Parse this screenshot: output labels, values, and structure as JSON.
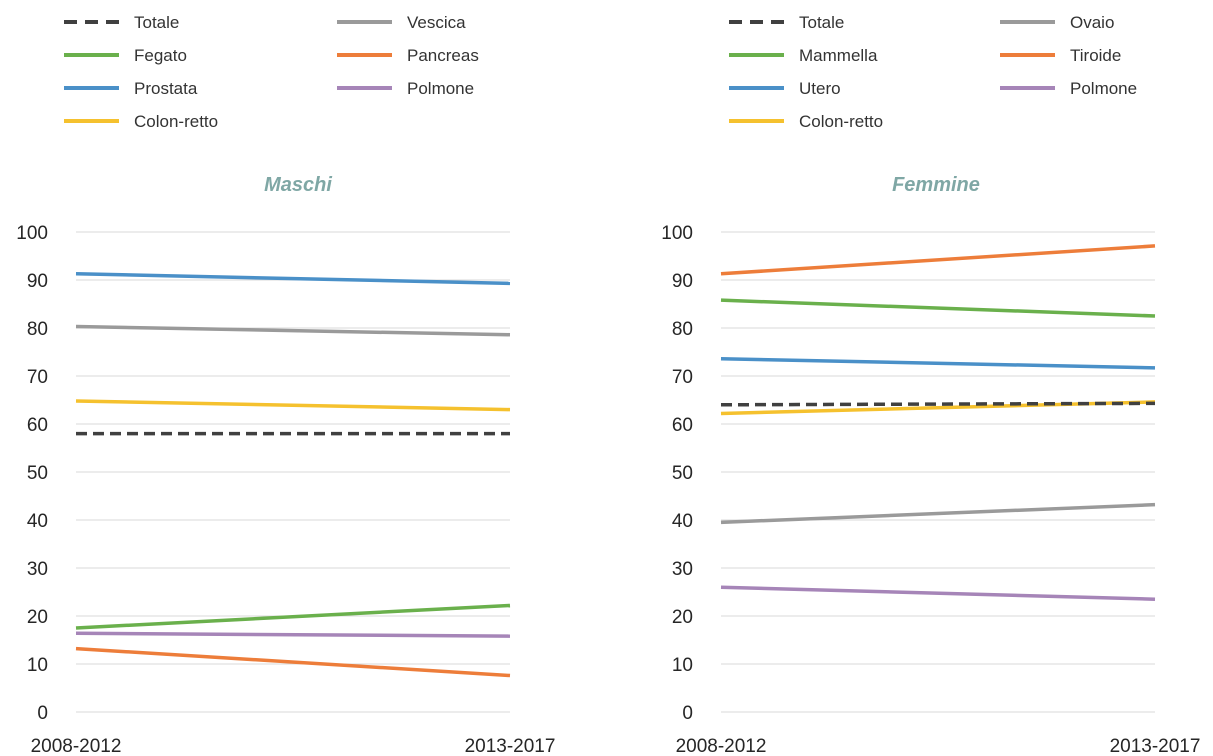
{
  "chart_data": [
    {
      "type": "line",
      "title": "Maschi",
      "x": [
        "2008-2012",
        "2013-2017"
      ],
      "yticks": [
        "0",
        "10",
        "20",
        "30",
        "40",
        "50",
        "60",
        "70",
        "80",
        "90",
        "100"
      ],
      "ylim": [
        0,
        100
      ],
      "grid": true,
      "legend": "top",
      "series": [
        {
          "name": "Totale",
          "values": [
            58,
            58
          ],
          "color": "#404040",
          "dashed": true
        },
        {
          "name": "Fegato",
          "values": [
            17.5,
            22.2
          ],
          "color": "#6ab04c",
          "dashed": false
        },
        {
          "name": "Prostata",
          "values": [
            91.3,
            89.3
          ],
          "color": "#4a90c8",
          "dashed": false
        },
        {
          "name": "Colon-retto",
          "values": [
            64.8,
            63
          ],
          "color": "#f5c12e",
          "dashed": false
        },
        {
          "name": "Vescica",
          "values": [
            80.3,
            78.6
          ],
          "color": "#9a9a9a",
          "dashed": false
        },
        {
          "name": "Pancreas",
          "values": [
            13.2,
            7.6
          ],
          "color": "#ed7d3a",
          "dashed": false
        },
        {
          "name": "Polmone",
          "values": [
            16.4,
            15.8
          ],
          "color": "#a685b8",
          "dashed": false
        }
      ]
    },
    {
      "type": "line",
      "title": "Femmine",
      "x": [
        "2008-2012",
        "2013-2017"
      ],
      "yticks": [
        "0",
        "10",
        "20",
        "30",
        "40",
        "50",
        "60",
        "70",
        "80",
        "90",
        "100"
      ],
      "ylim": [
        0,
        100
      ],
      "grid": true,
      "legend": "top",
      "series": [
        {
          "name": "Totale",
          "values": [
            64,
            64.3
          ],
          "color": "#404040",
          "dashed": true
        },
        {
          "name": "Mammella",
          "values": [
            85.8,
            82.5
          ],
          "color": "#6ab04c",
          "dashed": false
        },
        {
          "name": "Utero",
          "values": [
            73.6,
            71.7
          ],
          "color": "#4a90c8",
          "dashed": false
        },
        {
          "name": "Colon-retto",
          "values": [
            62.2,
            64.6
          ],
          "color": "#f5c12e",
          "dashed": false
        },
        {
          "name": "Ovaio",
          "values": [
            39.5,
            43.2
          ],
          "color": "#9a9a9a",
          "dashed": false
        },
        {
          "name": "Tiroide",
          "values": [
            91.3,
            97.1
          ],
          "color": "#ed7d3a",
          "dashed": false
        },
        {
          "name": "Polmone",
          "values": [
            26,
            23.5
          ],
          "color": "#a685b8",
          "dashed": false
        }
      ]
    }
  ]
}
